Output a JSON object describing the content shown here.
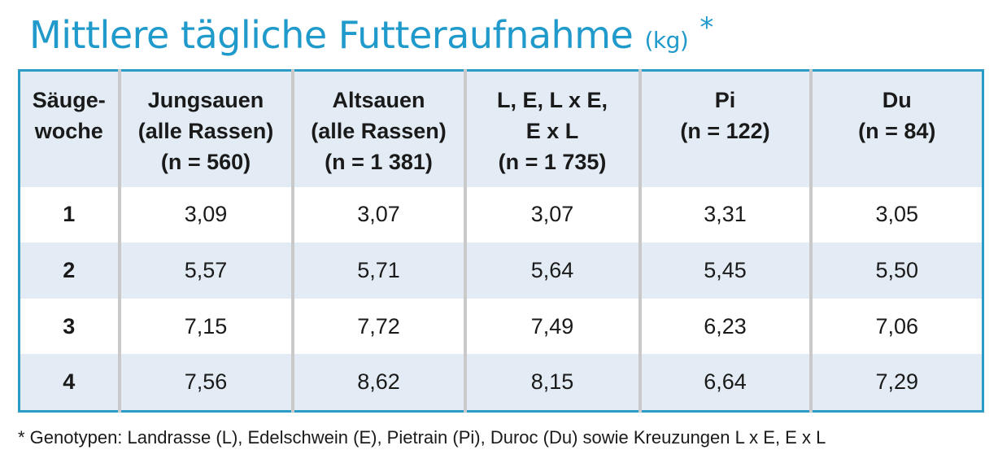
{
  "title": {
    "text": "Mittlere tägliche Futteraufnahme",
    "unit": "(kg)",
    "marker": "*"
  },
  "table": {
    "header": [
      [
        "Säuge-",
        "woche"
      ],
      [
        "Jungsauen",
        "(alle Rassen)",
        "(n = 560)"
      ],
      [
        "Altsauen",
        "(alle Rassen)",
        "(n = 1 381)"
      ],
      [
        "L, E, L x E,",
        "E x L",
        "(n = 1 735)"
      ],
      [
        "Pi",
        "(n = 122)"
      ],
      [
        "Du",
        "(n = 84)"
      ]
    ],
    "rows": [
      [
        "1",
        "3,09",
        "3,07",
        "3,07",
        "3,31",
        "3,05"
      ],
      [
        "2",
        "5,57",
        "5,71",
        "5,64",
        "5,45",
        "5,50"
      ],
      [
        "3",
        "7,15",
        "7,72",
        "7,49",
        "6,23",
        "7,06"
      ],
      [
        "4",
        "7,56",
        "8,62",
        "8,15",
        "6,64",
        "7,29"
      ]
    ]
  },
  "footnote": "* Genotypen: Landrasse (L), Edelschwein (E), Pietrain (Pi), Duroc (Du) sowie Kreuzungen L x E, E x L"
}
